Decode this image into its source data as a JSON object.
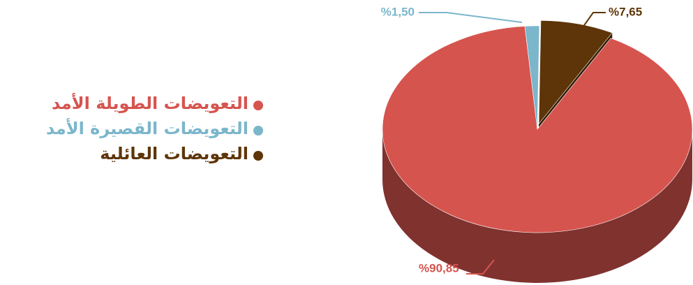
{
  "chart_data": {
    "type": "pie",
    "three_d": true,
    "categories": [
      "التعويضات الطويلة الأمد",
      "التعويضات القصيرة الأمد",
      "التعويضات العائلية"
    ],
    "values": [
      90.85,
      1.5,
      7.65
    ],
    "value_labels": [
      "%90,85",
      "%1,50",
      "%7,65"
    ],
    "colors": [
      "#d6544e",
      "#7bb6cb",
      "#5e3508"
    ],
    "legend": "left"
  }
}
